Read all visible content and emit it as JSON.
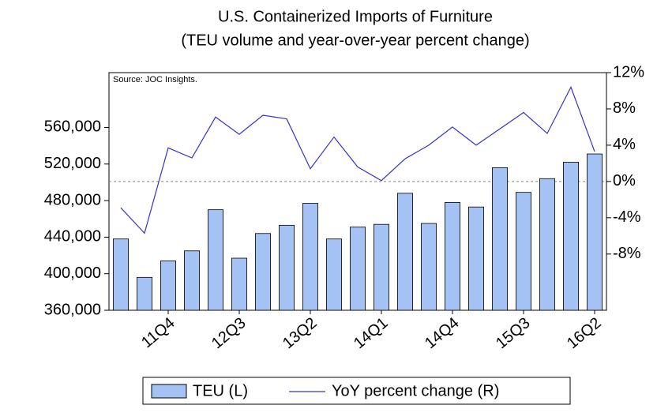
{
  "chart_data": {
    "type": "bar-line",
    "title": "U.S. Containerized Imports of Furniture",
    "subtitle": "(TEU volume and year-over-year percent change)",
    "annotation": "Source: JOC Insights.",
    "categories": [
      null,
      null,
      "11Q4",
      null,
      null,
      "12Q3",
      null,
      null,
      "13Q2",
      null,
      null,
      "14Q1",
      null,
      null,
      "14Q4",
      null,
      null,
      "15Q3",
      null,
      null,
      "16Q2"
    ],
    "series": [
      {
        "name": "TEU (L)",
        "type": "bar",
        "color": "#a4c2f4",
        "axis": "y",
        "values": [
          438000,
          396000,
          414000,
          425000,
          470000,
          417000,
          444000,
          453000,
          477000,
          438000,
          451000,
          454000,
          488000,
          455000,
          478000,
          473000,
          516000,
          489000,
          504000,
          522000,
          531000
        ]
      },
      {
        "name": "YoY percent change (R)",
        "type": "line",
        "color": "#3333cc",
        "axis": "y2",
        "values": [
          -2.9,
          -5.7,
          3.7,
          2.6,
          7.1,
          5.2,
          7.3,
          6.9,
          1.4,
          4.9,
          1.6,
          0.1,
          2.5,
          4.0,
          6.0,
          4.0,
          5.8,
          7.6,
          5.3,
          10.4,
          3.3
        ]
      }
    ],
    "ylim": [
      360000,
      620000
    ],
    "yticks": [
      {
        "value": 360000,
        "label": "360,000"
      },
      {
        "value": 400000,
        "label": "400,000"
      },
      {
        "value": 440000,
        "label": "440,000"
      },
      {
        "value": 480000,
        "label": "480,000"
      },
      {
        "value": 520000,
        "label": "520,000"
      },
      {
        "value": 560000,
        "label": "560,000"
      }
    ],
    "y2lim": [
      -14.2,
      12
    ],
    "y2ticks": [
      {
        "value": 12,
        "label": "12%"
      },
      {
        "value": 8,
        "label": "8%"
      },
      {
        "value": 4,
        "label": "4%"
      },
      {
        "value": 0,
        "label": "0%"
      },
      {
        "value": -4,
        "label": "-4%"
      },
      {
        "value": -8,
        "label": "-8%"
      }
    ],
    "y2_reference": 0,
    "legend": "bottom"
  }
}
